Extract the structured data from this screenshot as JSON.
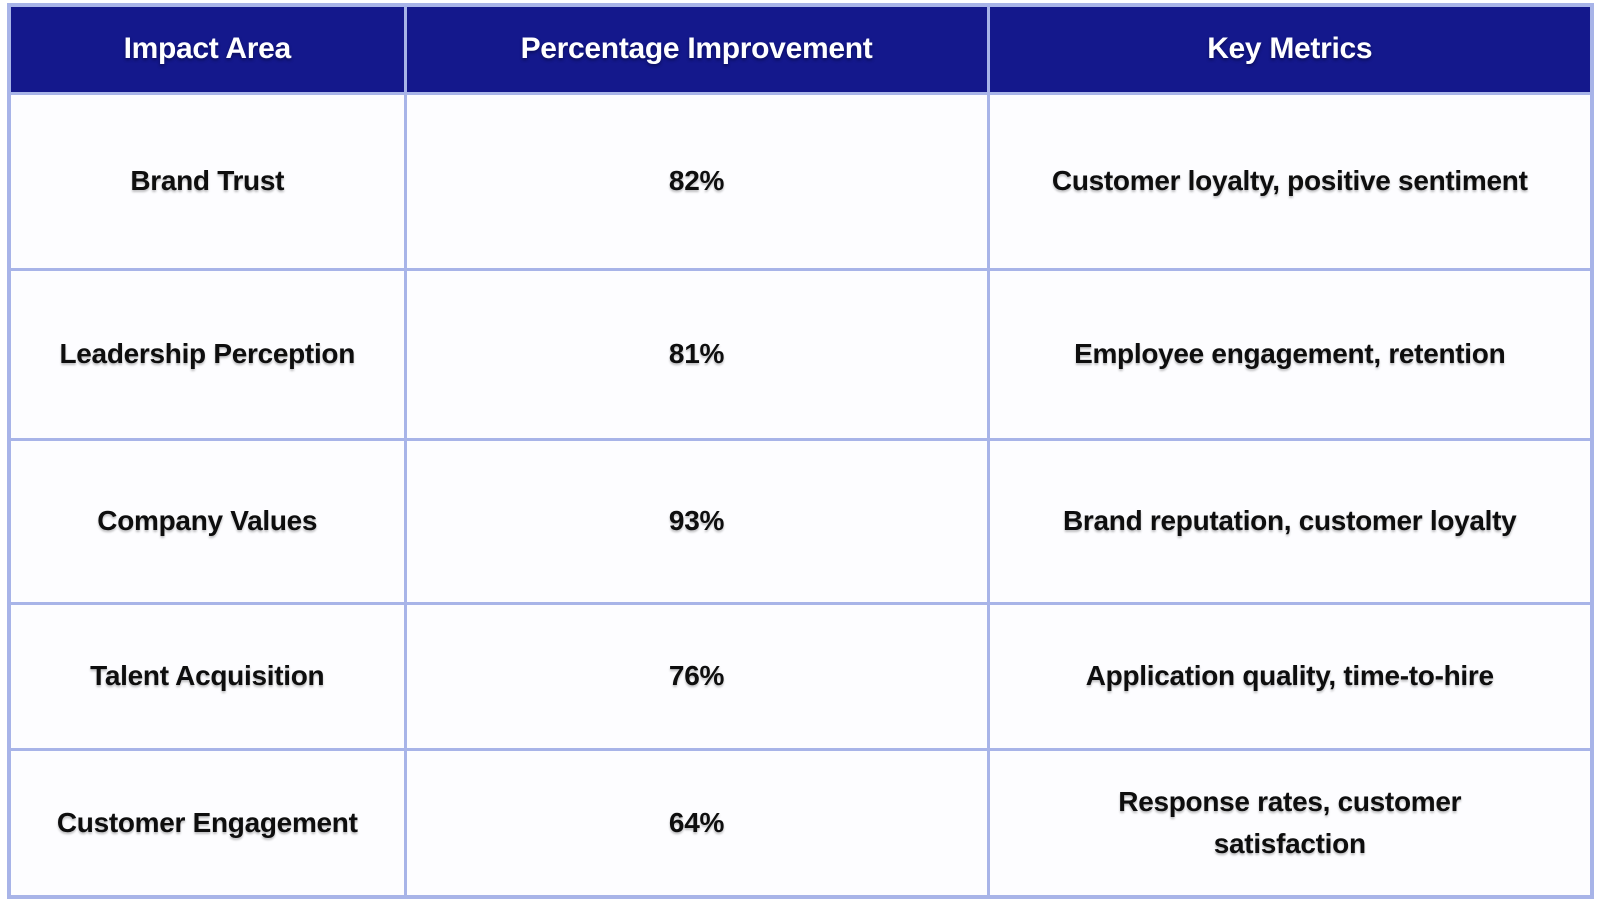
{
  "chart_data": {
    "type": "table",
    "columns": [
      "Impact Area",
      "Percentage Improvement",
      "Key Metrics"
    ],
    "rows": [
      [
        "Brand Trust",
        "82%",
        "Customer loyalty, positive sentiment"
      ],
      [
        "Leadership Perception",
        "81%",
        "Employee engagement, retention"
      ],
      [
        "Company Values",
        "93%",
        "Brand reputation, customer loyalty"
      ],
      [
        "Talent Acquisition",
        "76%",
        "Application quality, time-to-hire"
      ],
      [
        "Customer Engagement",
        "64%",
        "Response rates, customer satisfaction"
      ]
    ],
    "percentage_values": [
      82,
      81,
      93,
      76,
      64
    ],
    "layout_hints": {
      "grid": "on",
      "header_position": "top"
    }
  },
  "colors": {
    "header_background": "#14188c",
    "header_text": "#ffffff",
    "cell_text": "#0e0e0e",
    "grid_border": "#a8b4e8",
    "row_background": "#fdfdff"
  }
}
